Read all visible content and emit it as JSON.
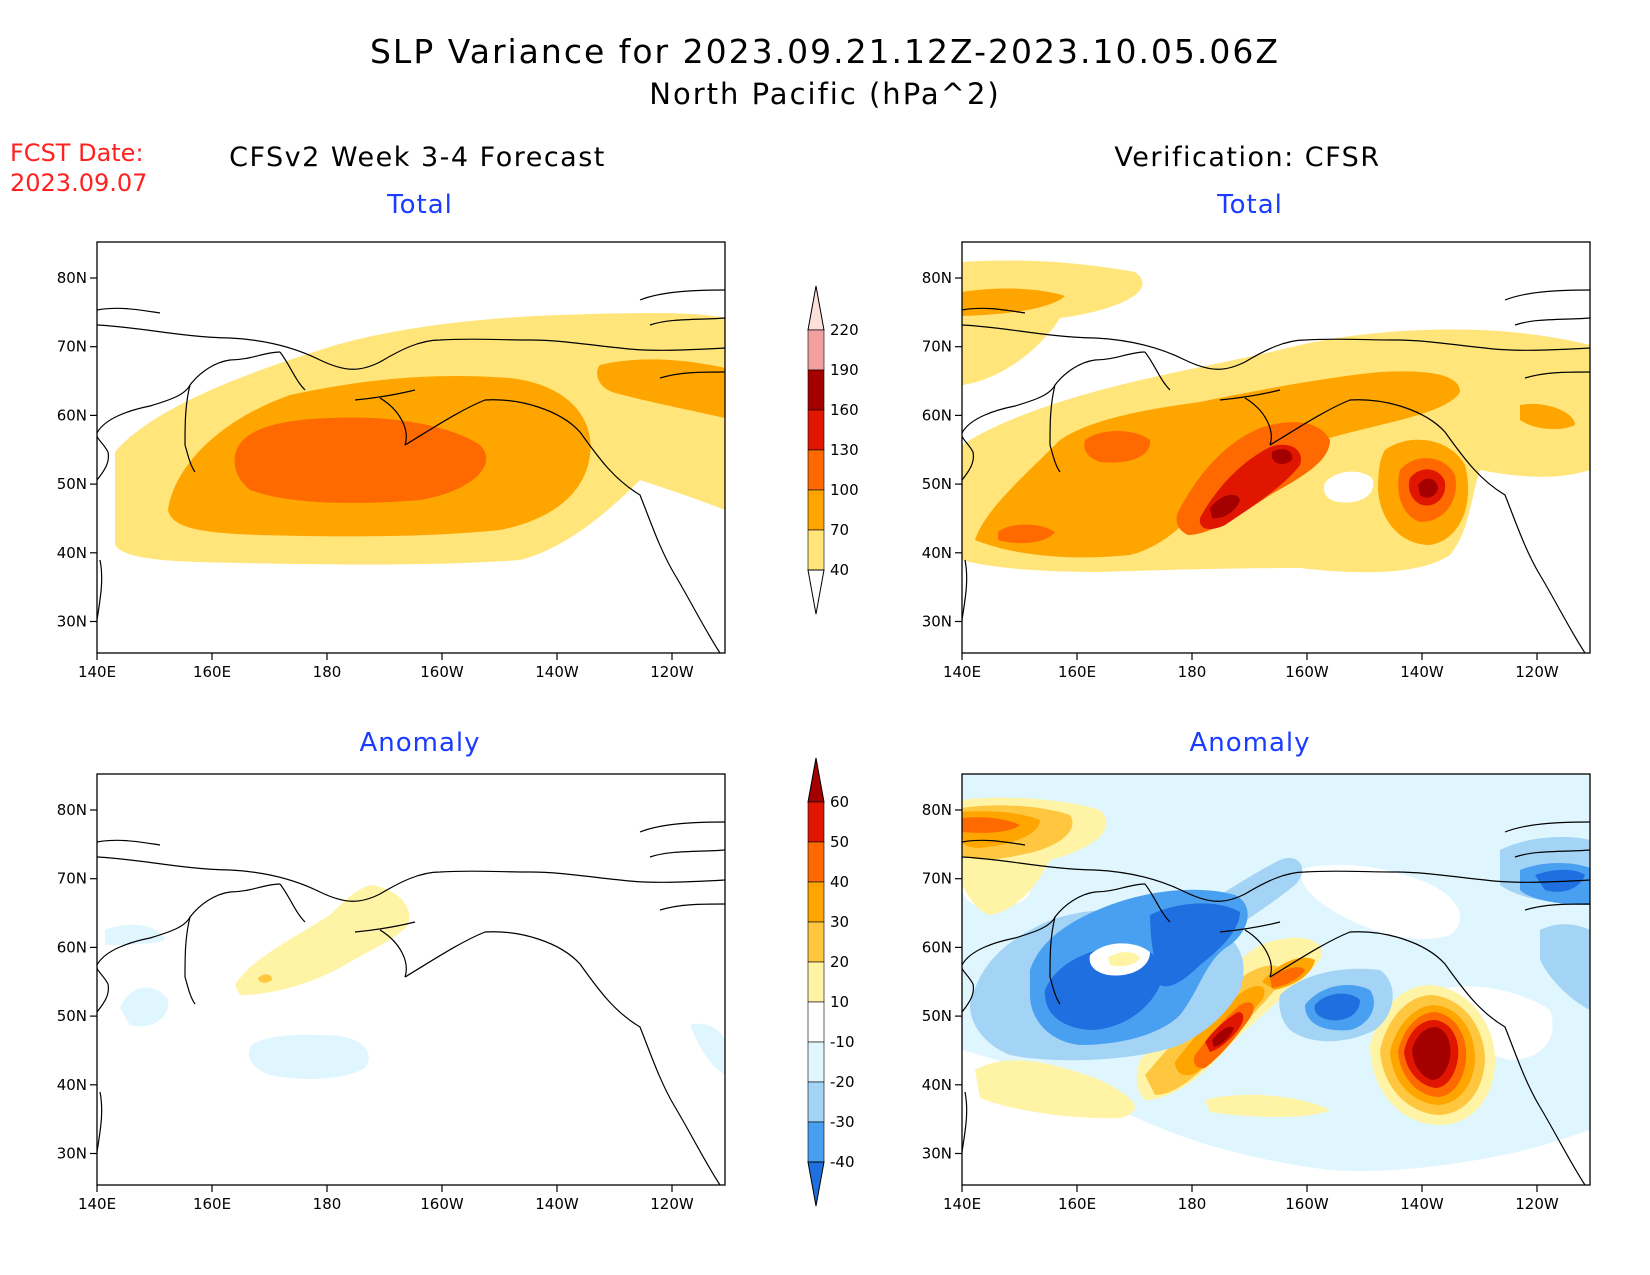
{
  "title": {
    "line1": "SLP Variance for 2023.09.21.12Z-2023.10.05.06Z",
    "line2": "North Pacific (hPa^2)"
  },
  "fcst_date": {
    "label": "FCST Date:",
    "value": "2023.09.07"
  },
  "columns": {
    "left": "CFSv2 Week 3-4 Forecast",
    "right": "Verification: CFSR"
  },
  "panel_titles": {
    "forecast_total": "Total",
    "forecast_anomaly": "Anomaly",
    "verif_total": "Total",
    "verif_anomaly": "Anomaly"
  },
  "axes": {
    "lat_labels": [
      "80N",
      "70N",
      "60N",
      "50N",
      "40N",
      "30N"
    ],
    "lon_labels": [
      "140E",
      "160E",
      "180",
      "160W",
      "140W",
      "120W"
    ]
  },
  "colorbars": {
    "total": {
      "labels": [
        "220",
        "190",
        "160",
        "130",
        "100",
        "70",
        "40"
      ],
      "colors": [
        "#fde0dc",
        "#f2a0a0",
        "#a50000",
        "#e01600",
        "#ff6a00",
        "#ffa500",
        "#ffe57a"
      ]
    },
    "anomaly": {
      "labels": [
        "60",
        "50",
        "40",
        "30",
        "20",
        "10",
        "-10",
        "-20",
        "-30",
        "-40"
      ],
      "colors": [
        "#a50000",
        "#e01600",
        "#ff6a00",
        "#ffa500",
        "#ffc740",
        "#fff4a6",
        "#ffffff",
        "#dff6ff",
        "#a3d3f5",
        "#4aa0f0",
        "#1f6fe0"
      ]
    }
  }
}
